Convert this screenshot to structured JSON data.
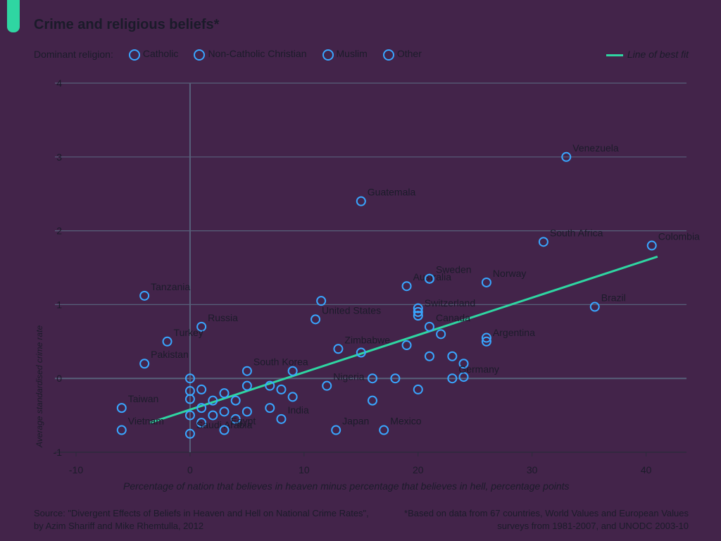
{
  "title": "Crime and religious beliefs*",
  "legend": {
    "prefix": "Dominant religion:",
    "items": [
      {
        "label": "Catholic",
        "color": "#39a6ff"
      },
      {
        "label": "Non-Catholic Christian",
        "color": "#39a6ff"
      },
      {
        "label": "Muslim",
        "color": "#39a6ff"
      },
      {
        "label": "Other",
        "color": "#39a6ff"
      }
    ],
    "fit_label": "Line of best fit"
  },
  "footer": {
    "source": "Source: \"Divergent Effects of Beliefs in Heaven and Hell on National Crime Rates\", by Azim Shariff and Mike Rhemtulla, 2012",
    "note": "*Based on data from 67 countries, World Values and European Values surveys from 1981-2007, and UNODC 2003-10"
  },
  "chart_data": {
    "type": "scatter",
    "title": "Crime and religious beliefs*",
    "xlabel": "Percentage of nation that believes in heaven minus percentage that believes in hell, percentage points",
    "ylabel": "Average standardised crime rate",
    "xlim": [
      -10,
      42
    ],
    "ylim": [
      -1,
      4
    ],
    "x_ticks": [
      -10,
      0,
      10,
      20,
      30,
      40
    ],
    "y_ticks": [
      -1,
      0,
      1,
      2,
      3,
      4
    ],
    "grid": true,
    "legend_position": "top",
    "colors": {
      "marker": "#39a6ff",
      "fit": "#2fd6a2",
      "grid": "#57607a",
      "axis": "#2a2a3a"
    },
    "fit_line": {
      "x": [
        -3.5,
        41
      ],
      "y": [
        -0.6,
        1.65
      ]
    },
    "labeled_points": [
      {
        "label": "Venezuela",
        "x": 33,
        "y": 3.0
      },
      {
        "label": "Guatemala",
        "x": 15,
        "y": 2.4
      },
      {
        "label": "South Africa",
        "x": 31,
        "y": 1.85
      },
      {
        "label": "Colombia",
        "x": 40.5,
        "y": 1.8
      },
      {
        "label": "Australia",
        "x": 19,
        "y": 1.25
      },
      {
        "label": "Sweden",
        "x": 21,
        "y": 1.35
      },
      {
        "label": "Norway",
        "x": 26,
        "y": 1.3
      },
      {
        "label": "Tanzania",
        "x": -4,
        "y": 1.12
      },
      {
        "label": "Brazil",
        "x": 35.5,
        "y": 0.97
      },
      {
        "label": "United States",
        "x": 11,
        "y": 0.8
      },
      {
        "label": "Switzerland",
        "x": 20,
        "y": 0.9
      },
      {
        "label": "Russia",
        "x": 1,
        "y": 0.7
      },
      {
        "label": "Canada",
        "x": 21,
        "y": 0.7
      },
      {
        "label": "Turkey",
        "x": -2,
        "y": 0.5
      },
      {
        "label": "Zimbabwe",
        "x": 13,
        "y": 0.4
      },
      {
        "label": "Argentina",
        "x": 26,
        "y": 0.5
      },
      {
        "label": "Pakistan",
        "x": -4,
        "y": 0.2
      },
      {
        "label": "South Korea",
        "x": 5,
        "y": 0.1
      },
      {
        "label": "Nigeria",
        "x": 12,
        "y": -0.1
      },
      {
        "label": "Germany",
        "x": 23,
        "y": 0.0
      },
      {
        "label": "Taiwan",
        "x": -6,
        "y": -0.4
      },
      {
        "label": "Vietnam",
        "x": -6,
        "y": -0.7
      },
      {
        "label": "India",
        "x": 8,
        "y": -0.55
      },
      {
        "label": "Japan",
        "x": 12.8,
        "y": -0.7
      },
      {
        "label": "Mexico",
        "x": 17,
        "y": -0.7
      },
      {
        "label": "Saudi Arabia",
        "x": 0,
        "y": -0.75
      },
      {
        "label": "Egypt",
        "x": 3,
        "y": -0.7
      }
    ],
    "other_points": [
      {
        "x": 0,
        "y": 0.0
      },
      {
        "x": 0,
        "y": -0.17
      },
      {
        "x": 0,
        "y": -0.28
      },
      {
        "x": 0,
        "y": -0.5
      },
      {
        "x": 1,
        "y": -0.6
      },
      {
        "x": 1,
        "y": -0.4
      },
      {
        "x": 1,
        "y": -0.15
      },
      {
        "x": 2,
        "y": -0.5
      },
      {
        "x": 2,
        "y": -0.3
      },
      {
        "x": 3,
        "y": -0.45
      },
      {
        "x": 3,
        "y": -0.2
      },
      {
        "x": 4,
        "y": -0.55
      },
      {
        "x": 4,
        "y": -0.3
      },
      {
        "x": 5,
        "y": -0.1
      },
      {
        "x": 5,
        "y": -0.45
      },
      {
        "x": 7,
        "y": -0.4
      },
      {
        "x": 7,
        "y": -0.1
      },
      {
        "x": 8,
        "y": -0.15
      },
      {
        "x": 9,
        "y": -0.25
      },
      {
        "x": 9,
        "y": 0.1
      },
      {
        "x": 15,
        "y": 0.35
      },
      {
        "x": 16,
        "y": 0.0
      },
      {
        "x": 16,
        "y": -0.3
      },
      {
        "x": 18,
        "y": 0.0
      },
      {
        "x": 19,
        "y": 0.45
      },
      {
        "x": 20,
        "y": -0.15
      },
      {
        "x": 20,
        "y": 0.95
      },
      {
        "x": 21,
        "y": 0.3
      },
      {
        "x": 22,
        "y": 0.6
      },
      {
        "x": 23,
        "y": 0.3
      },
      {
        "x": 24,
        "y": 0.2
      },
      {
        "x": 24,
        "y": 0.02
      },
      {
        "x": 26,
        "y": 0.55
      },
      {
        "x": 11.5,
        "y": 1.05
      },
      {
        "x": 20,
        "y": 0.85
      },
      {
        "x": 21,
        "y": 1.35
      }
    ]
  }
}
